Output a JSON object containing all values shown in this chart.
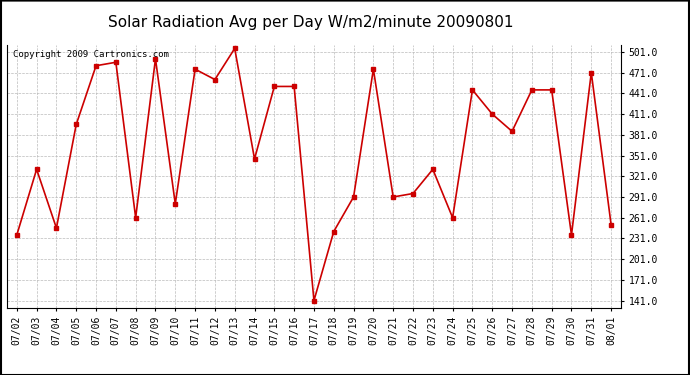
{
  "title": "Solar Radiation Avg per Day W/m2/minute 20090801",
  "copyright": "Copyright 2009 Cartronics.com",
  "dates": [
    "07/02",
    "07/03",
    "07/04",
    "07/05",
    "07/06",
    "07/07",
    "07/08",
    "07/09",
    "07/10",
    "07/11",
    "07/12",
    "07/13",
    "07/14",
    "07/15",
    "07/16",
    "07/17",
    "07/18",
    "07/19",
    "07/20",
    "07/21",
    "07/22",
    "07/23",
    "07/24",
    "07/25",
    "07/26",
    "07/27",
    "07/28",
    "07/29",
    "07/30",
    "07/31",
    "08/01"
  ],
  "values": [
    236,
    331,
    246,
    396,
    481,
    486,
    261,
    491,
    281,
    476,
    461,
    506,
    346,
    451,
    451,
    141,
    241,
    291,
    476,
    291,
    296,
    331,
    261,
    446,
    411,
    386,
    446,
    446,
    236,
    471,
    251
  ],
  "yticks": [
    141.0,
    171.0,
    201.0,
    231.0,
    261.0,
    291.0,
    321.0,
    351.0,
    381.0,
    411.0,
    441.0,
    471.0,
    501.0
  ],
  "ylim": [
    131,
    511
  ],
  "line_color": "#cc0000",
  "marker": "s",
  "marker_size": 2.5,
  "background_color": "#ffffff",
  "plot_bg_color": "#ffffff",
  "grid_color": "#bbbbbb",
  "title_fontsize": 11,
  "tick_fontsize": 7,
  "copyright_fontsize": 6.5
}
